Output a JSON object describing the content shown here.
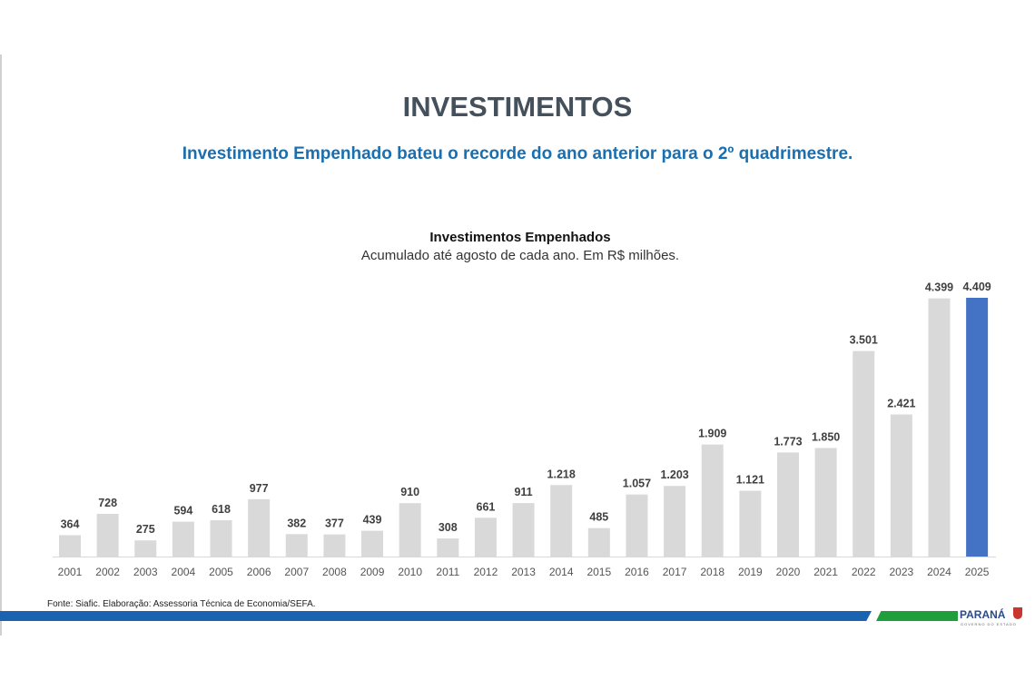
{
  "header": {
    "title": "INVESTIMENTOS",
    "subtitle": "Investimento Empenhado bateu o recorde do ano anterior para o 2º quadrimestre."
  },
  "footer": {
    "source": "Fonte: Siafic. Elaboração: Assessoria Técnica de Economia/SEFA.",
    "logo": "PARANÁ",
    "logo_sub": "GOVERNO DO ESTADO"
  },
  "chart_data": {
    "type": "bar",
    "title": "Investimentos Empenhados",
    "subtitle": "Acumulado até agosto de cada ano. Em R$ milhões.",
    "categories": [
      "2001",
      "2002",
      "2003",
      "2004",
      "2005",
      "2006",
      "2007",
      "2008",
      "2009",
      "2010",
      "2011",
      "2012",
      "2013",
      "2014",
      "2015",
      "2016",
      "2017",
      "2018",
      "2019",
      "2020",
      "2021",
      "2022",
      "2023",
      "2024",
      "2025"
    ],
    "values": [
      364,
      728,
      275,
      594,
      618,
      977,
      382,
      377,
      439,
      910,
      308,
      661,
      911,
      1218,
      485,
      1057,
      1203,
      1909,
      1121,
      1773,
      1850,
      3501,
      2421,
      4399,
      4409
    ],
    "labels": [
      "364",
      "728",
      "275",
      "594",
      "618",
      "977",
      "382",
      "377",
      "439",
      "910",
      "308",
      "661",
      "911",
      "1.218",
      "485",
      "1.057",
      "1.203",
      "1.909",
      "1.121",
      "1.773",
      "1.850",
      "3.501",
      "2.421",
      "4.399",
      "4.409"
    ],
    "colors": {
      "default": "#d9d9d9",
      "highlight": "#4472c4"
    },
    "highlight_index": 24,
    "ylim": [
      0,
      4409
    ],
    "grid": false
  }
}
